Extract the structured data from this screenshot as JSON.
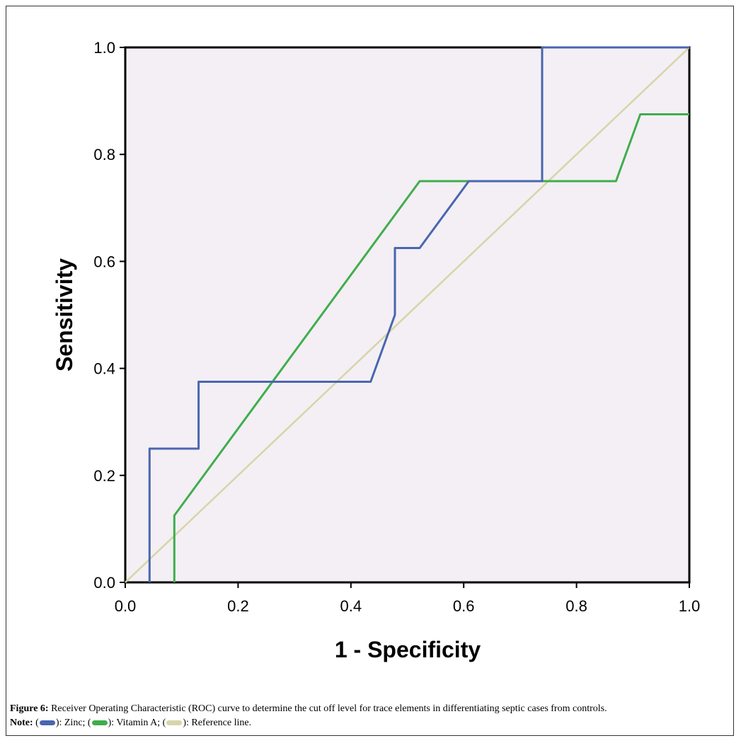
{
  "chart_data": {
    "type": "line",
    "xlabel": "1 - Specificity",
    "ylabel": "Sensitivity",
    "xlim": [
      0.0,
      1.0
    ],
    "ylim": [
      0.0,
      1.0
    ],
    "x_ticks": [
      "0.0",
      "0.2",
      "0.4",
      "0.6",
      "0.8",
      "1.0"
    ],
    "y_ticks": [
      "0.0",
      "0.2",
      "0.4",
      "0.6",
      "0.8",
      "1.0"
    ],
    "grid": false,
    "series": [
      {
        "name": "Zinc",
        "color": "#4a66b0",
        "points": [
          [
            0.043,
            0.0
          ],
          [
            0.043,
            0.25
          ],
          [
            0.13,
            0.25
          ],
          [
            0.13,
            0.375
          ],
          [
            0.435,
            0.375
          ],
          [
            0.478,
            0.5
          ],
          [
            0.478,
            0.625
          ],
          [
            0.522,
            0.625
          ],
          [
            0.609,
            0.75
          ],
          [
            0.739,
            0.75
          ],
          [
            0.739,
            1.0
          ],
          [
            1.0,
            1.0
          ]
        ]
      },
      {
        "name": "Vitamin A",
        "color": "#3fae4c",
        "points": [
          [
            0.087,
            0.0
          ],
          [
            0.087,
            0.125
          ],
          [
            0.522,
            0.75
          ],
          [
            0.87,
            0.75
          ],
          [
            0.913,
            0.875
          ],
          [
            1.0,
            0.875
          ]
        ]
      },
      {
        "name": "Reference line",
        "color": "#d8d4a8",
        "points": [
          [
            0.0,
            0.0
          ],
          [
            1.0,
            1.0
          ]
        ]
      }
    ]
  },
  "caption": {
    "figure_label": "Figure 6:",
    "figure_text": " Receiver Operating Characteristic (ROC) curve to determine the cut off level for trace elements in differentiating septic cases from controls.",
    "note_label": "Note:",
    "note_items": [
      {
        "swatch_color": "#4a66b0",
        "text": "): Zinc; ("
      },
      {
        "swatch_color": "#3fae4c",
        "text": "): Vitamin A; ("
      },
      {
        "swatch_color": "#d8d4a8",
        "text": "): Reference line."
      }
    ]
  }
}
